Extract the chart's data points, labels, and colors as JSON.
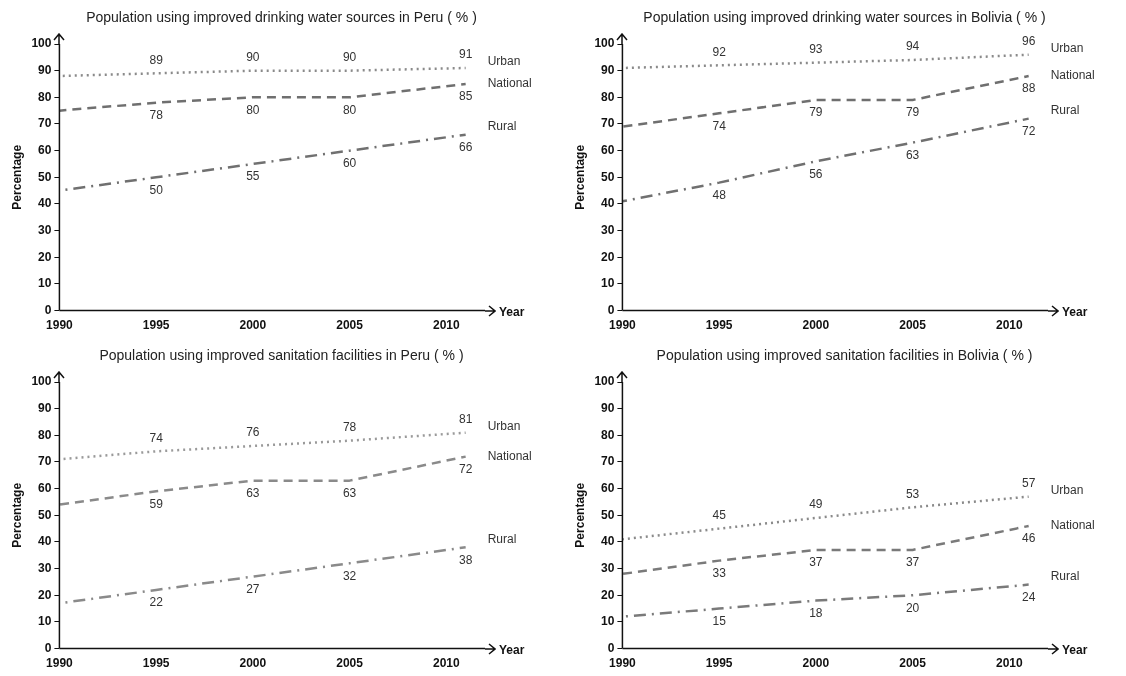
{
  "chart_data": [
    {
      "type": "line",
      "title": "Population using improved drinking water sources in Peru ( % )",
      "xlabel": "Year",
      "ylabel": "Percentage",
      "x": [
        1990,
        1995,
        2000,
        2005,
        2011
      ],
      "xlim": [
        1990,
        2012
      ],
      "xticks": [
        1990,
        1995,
        2000,
        2005,
        2010
      ],
      "ylim": [
        0,
        100
      ],
      "yticks": [
        0,
        10,
        20,
        30,
        40,
        50,
        60,
        70,
        80,
        90,
        100
      ],
      "grid": false,
      "legend": false,
      "series": [
        {
          "name": "Urban",
          "color": "#8a8a8a",
          "line_style": "dotted",
          "values": [
            88,
            89,
            90,
            90,
            91
          ],
          "value_labels": [
            null,
            "89",
            "90",
            "90",
            "91"
          ]
        },
        {
          "name": "National",
          "color": "#6f6f6f",
          "line_style": "dashed",
          "values": [
            75,
            78,
            80,
            80,
            85
          ],
          "value_labels": [
            null,
            "78",
            "80",
            "80",
            "85"
          ]
        },
        {
          "name": "Rural",
          "color": "#707070",
          "line_style": "dashdot",
          "values": [
            45,
            50,
            55,
            60,
            66
          ],
          "value_labels": [
            null,
            "50",
            "55",
            "60",
            "66"
          ]
        }
      ]
    },
    {
      "type": "line",
      "title": "Population using improved drinking water sources in Bolivia ( % )",
      "xlabel": "Year",
      "ylabel": "Percentage",
      "x": [
        1990,
        1995,
        2000,
        2005,
        2011
      ],
      "xlim": [
        1990,
        2012
      ],
      "xticks": [
        1990,
        1995,
        2000,
        2005,
        2010
      ],
      "ylim": [
        0,
        100
      ],
      "yticks": [
        0,
        10,
        20,
        30,
        40,
        50,
        60,
        70,
        80,
        90,
        100
      ],
      "grid": false,
      "legend": false,
      "series": [
        {
          "name": "Urban",
          "color": "#8a8a8a",
          "line_style": "dotted",
          "values": [
            91,
            92,
            93,
            94,
            96
          ],
          "value_labels": [
            null,
            "92",
            "93",
            "94",
            "96"
          ]
        },
        {
          "name": "National",
          "color": "#6f6f6f",
          "line_style": "dashed",
          "values": [
            69,
            74,
            79,
            79,
            88
          ],
          "value_labels": [
            null,
            "74",
            "79",
            "79",
            "88"
          ]
        },
        {
          "name": "Rural",
          "color": "#707070",
          "line_style": "dashdot",
          "values": [
            41,
            48,
            56,
            63,
            72
          ],
          "value_labels": [
            null,
            "48",
            "56",
            "63",
            "72"
          ]
        }
      ]
    },
    {
      "type": "line",
      "title": "Population using improved sanitation facilities in Peru ( % )",
      "xlabel": "Year",
      "ylabel": "Percentage",
      "x": [
        1990,
        1995,
        2000,
        2005,
        2011
      ],
      "xlim": [
        1990,
        2012
      ],
      "xticks": [
        1990,
        1995,
        2000,
        2005,
        2010
      ],
      "ylim": [
        0,
        100
      ],
      "yticks": [
        0,
        10,
        20,
        30,
        40,
        50,
        60,
        70,
        80,
        90,
        100
      ],
      "grid": false,
      "legend": false,
      "series": [
        {
          "name": "Urban",
          "color": "#9a9a9a",
          "line_style": "dotted",
          "values": [
            71,
            74,
            76,
            78,
            81
          ],
          "value_labels": [
            null,
            "74",
            "76",
            "78",
            "81"
          ]
        },
        {
          "name": "National",
          "color": "#8a8a8a",
          "line_style": "dashed",
          "values": [
            54,
            59,
            63,
            63,
            72
          ],
          "value_labels": [
            null,
            "59",
            "63",
            "63",
            "72"
          ]
        },
        {
          "name": "Rural",
          "color": "#8a8a8a",
          "line_style": "dashdot",
          "values": [
            17,
            22,
            27,
            32,
            38
          ],
          "value_labels": [
            null,
            "22",
            "27",
            "32",
            "38"
          ]
        }
      ]
    },
    {
      "type": "line",
      "title": "Population using improved sanitation facilities in Bolivia ( % )",
      "xlabel": "Year",
      "ylabel": "Percentage",
      "x": [
        1990,
        1995,
        2000,
        2005,
        2011
      ],
      "xlim": [
        1990,
        2012
      ],
      "xticks": [
        1990,
        1995,
        2000,
        2005,
        2010
      ],
      "ylim": [
        0,
        100
      ],
      "yticks": [
        0,
        10,
        20,
        30,
        40,
        50,
        60,
        70,
        80,
        90,
        100
      ],
      "grid": false,
      "legend": false,
      "series": [
        {
          "name": "Urban",
          "color": "#8a8a8a",
          "line_style": "dotted",
          "values": [
            41,
            45,
            49,
            53,
            57
          ],
          "value_labels": [
            null,
            "45",
            "49",
            "53",
            "57"
          ]
        },
        {
          "name": "National",
          "color": "#7a7a7a",
          "line_style": "dashed",
          "values": [
            28,
            33,
            37,
            37,
            46
          ],
          "value_labels": [
            null,
            "33",
            "37",
            "37",
            "46"
          ]
        },
        {
          "name": "Rural",
          "color": "#7a7a7a",
          "line_style": "dashdot",
          "values": [
            12,
            15,
            18,
            20,
            24
          ],
          "value_labels": [
            null,
            "15",
            "18",
            "20",
            "24"
          ]
        }
      ]
    }
  ]
}
